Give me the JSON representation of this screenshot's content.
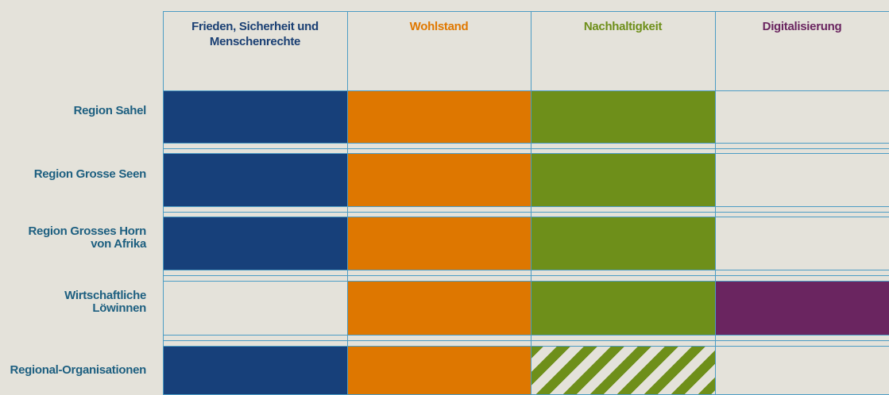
{
  "columns": [
    "Frieden, Sicherheit und Menschenrechte",
    "Wohlstand",
    "Nachhaltigkeit",
    "Digitalisierung"
  ],
  "rows": [
    "Region Sahel",
    "Region Grosse Seen",
    "Region Grosses Horn von Afrika",
    "Wirtschaftliche Löwinnen",
    "Regional-Organisationen"
  ]
}
